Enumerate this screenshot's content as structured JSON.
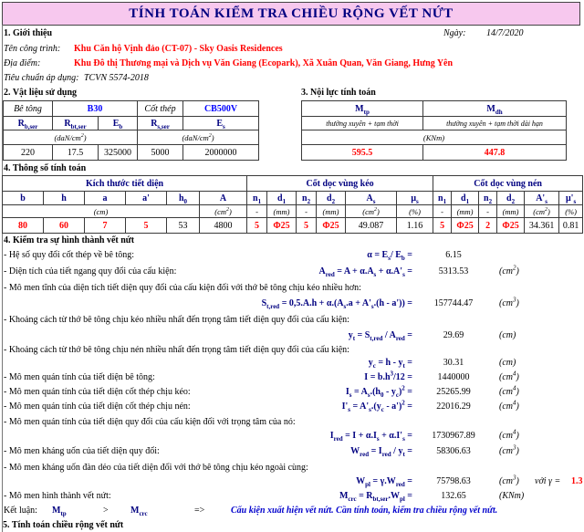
{
  "title": "TÍNH TOÁN KIỂM TRA CHIỀU RỘNG VẾT NỨT",
  "colors": {
    "title_bg": "#F7C8EE",
    "heading_navy": "#000080",
    "value_red": "#FF0000",
    "grade_blue": "#0000FF",
    "conclusion_blue": "#0000CC"
  },
  "intro": {
    "heading": "1. Giới thiệu",
    "date_label": "Ngày:",
    "date": "14/7/2020",
    "project_label": "Tên công trình:",
    "project": "Khu Căn hộ Vịnh đảo (CT-07) - Sky Oasis Residences",
    "location_label": "Địa điểm:",
    "location": "Khu Đô thị Thương mại và Dịch vụ Văn Giang (Ecopark), Xã Xuân Quan, Văn Giang, Hưng Yên",
    "standard_label": "Tiêu chuẩn áp dụng:",
    "standard": "TCVN 5574-2018"
  },
  "materials": {
    "heading": "2. Vật liệu sử dụng",
    "concrete_label": "Bê tông",
    "concrete_grade": "B30",
    "steel_label": "Cốt thép",
    "steel_grade": "CB500V",
    "col_headers": [
      "R_{b,ser}",
      "R_{bt,ser}",
      "E_{b}",
      "R_{s,ser}",
      "E_{s}"
    ],
    "unit_concrete": "(daN/cm^{2})",
    "unit_steel": "(daN/cm^{2})",
    "values": [
      "220",
      "17.5",
      "325000",
      "5000",
      "2000000"
    ]
  },
  "forces": {
    "heading": "3. Nội lực tính toán",
    "symbols": [
      "M_{tp}",
      "M_{dh}"
    ],
    "descriptions": [
      "thường xuyên + tạm thời",
      "thường xuyên + tạm thời dài hạn"
    ],
    "unit": "(KNm)",
    "values": [
      "595.5",
      "447.8"
    ]
  },
  "parameters": {
    "heading": "4. Thông số tính toán",
    "groups": [
      "Kích thước tiết diện",
      "Cốt dọc vùng kéo",
      "Cốt dọc vùng nén"
    ],
    "columns": [
      "b",
      "h",
      "a",
      "a'",
      "h_{0}",
      "A",
      "n_{1}",
      "d_{1}",
      "n_{2}",
      "d_{2}",
      "A_{s}",
      "μ_{s}",
      "n_{1}",
      "d_{1}",
      "n_{2}",
      "d_{2}",
      "A'_{s}",
      "μ'_{s}"
    ],
    "units": [
      "(cm)",
      "(cm^{2})",
      "-",
      "(mm)",
      "-",
      "(mm)",
      "(cm^{2})",
      "(%)",
      "-",
      "(mm)",
      "-",
      "(mm)",
      "(cm^{2})",
      "(%)"
    ],
    "values": [
      "80",
      "60",
      "7",
      "5",
      "53",
      "4800",
      "5",
      "Φ25",
      "5",
      "Φ25",
      "49.087",
      "1.16",
      "5",
      "Φ25",
      "2",
      "Φ25",
      "34.361",
      "0.81"
    ]
  },
  "crack_check": {
    "heading": "4. Kiểm tra sự hình thành vết nứt",
    "rows": [
      {
        "label": "- Hệ số quy đổi cốt thép về bê tông:",
        "formula": "α = E_{s}/ E_{b} =",
        "value": "6.15",
        "unit": ""
      },
      {
        "label": "- Diện tích của tiết ngang quy đổi của cấu kiện:",
        "formula": "A_{red} = A + α.A_{s} + α.A'_{s} =",
        "value": "5313.53",
        "unit": "(cm^{2})"
      },
      {
        "label": "- Mô men tĩnh của diện tích tiết diện quy đổi của cấu kiện đối với thớ bê tông chịu kéo nhiều hơn:"
      },
      {
        "formula": "S_{t,red} = 0,5.A.h + α.(A_{s}.a + A'_{s}.(h - a')) =",
        "value": "157744.47",
        "unit": "(cm^{3})"
      },
      {
        "label": "- Khoảng cách từ thớ bê tông chịu kéo nhiều nhất đến trọng tâm tiết diện quy đổi của cấu kiện:"
      },
      {
        "formula": "y_{t} = S_{t,red} / A_{red} =",
        "value": "29.69",
        "unit": "(cm)"
      },
      {
        "label": "- Khoảng cách từ thớ bê tông chịu nén nhiều nhất đến trọng tâm tiết diện quy đổi của cấu kiện:"
      },
      {
        "formula": "y_{c} = h - y_{t} =",
        "value": "30.31",
        "unit": "(cm)"
      },
      {
        "label": "- Mô men quán tính của tiết diện bê tông:",
        "formula": "I = b.h^{3}/12 =",
        "value": "1440000",
        "unit": "(cm^{4})"
      },
      {
        "label": "- Mô men quán tính của tiết diện cốt thép chịu kéo:",
        "formula": "I_{s} = A_{s}.(h_{0} - y_{c})^{2} =",
        "value": "25265.99",
        "unit": "(cm^{4})"
      },
      {
        "label": "- Mô men quán tính của tiết diện cốt thép chịu nén:",
        "formula": "I'_{s} = A'_{s}.(y_{c} - a')^{2} =",
        "value": "22016.29",
        "unit": "(cm^{4})"
      },
      {
        "label": "- Mô men quán tính của tiết diện quy đổi của cấu kiện đối với trọng tâm của nó:"
      },
      {
        "formula": "I_{red} = I + α.I_{s} + α.I'_{s} =",
        "value": "1730967.89",
        "unit": "(cm^{4})"
      },
      {
        "label": "- Mô men kháng uốn của tiết diện quy đổi:",
        "formula": "W_{red} = I_{red} / y_{t} =",
        "value": "58306.63",
        "unit": "(cm^{3})"
      },
      {
        "label": "- Mô men kháng uốn đàn dẻo của tiết diện đối với thớ bê tông chịu kéo ngoài cùng:"
      },
      {
        "formula": "W_{pl} = γ.W_{red} =",
        "value": "75798.63",
        "unit": "(cm^{3})",
        "extra_label": "với γ =",
        "extra_value": "1.3"
      },
      {
        "label": "- Mô men hình thành vết nứt:",
        "formula": "M_{crc} = R_{bt,ser}.W_{pl} =",
        "value": "132.65",
        "unit": "(KNm)"
      }
    ],
    "conclusion": {
      "label": "Kết luận:",
      "m1": "M_{tp}",
      "op": ">",
      "m2": "M_{crc}",
      "arrow": "=>",
      "text": "Cấu kiện xuất hiện vết nứt. Cần tính toán, kiểm tra chiều rộng vết nứt."
    }
  },
  "section5": {
    "heading": "5. Tính toán chiều rộng vết nứt"
  }
}
